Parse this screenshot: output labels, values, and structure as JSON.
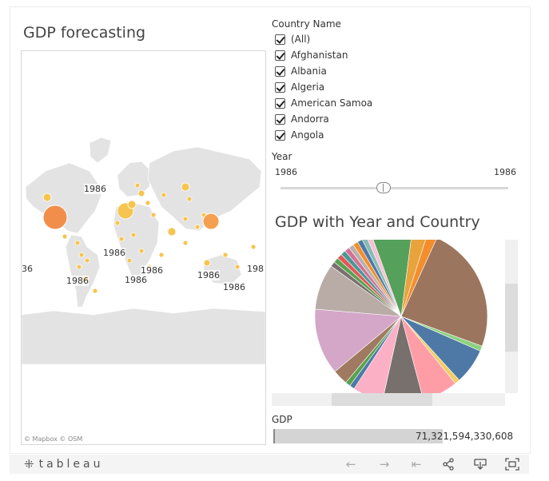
{
  "map_panel": {
    "title": "GDP forecasting",
    "attribution": "© Mapbox  © OSM",
    "point_labels": [
      "1986",
      "1986",
      "1986",
      "1986",
      "1986",
      "1986",
      "1986",
      "1986",
      "1986",
      "1986",
      "36",
      "198"
    ]
  },
  "country_filter": {
    "title": "Country Name",
    "items": [
      {
        "label": "(All)",
        "checked": true
      },
      {
        "label": "Afghanistan",
        "checked": true
      },
      {
        "label": "Albania",
        "checked": true
      },
      {
        "label": "Algeria",
        "checked": true
      },
      {
        "label": "American Samoa",
        "checked": true
      },
      {
        "label": "Andorra",
        "checked": true
      },
      {
        "label": "Angola",
        "checked": true
      }
    ]
  },
  "year_filter": {
    "title": "Year",
    "min": "1986",
    "max": "1986"
  },
  "pie_panel": {
    "title": "GDP with Year and Country",
    "slice_colors": [
      "#55a05a",
      "#e8a33d",
      "#f28e2b",
      "#9c755f",
      "#8cd17d",
      "#4e79a7",
      "#f1ce63",
      "#ff9da7",
      "#77706c",
      "#fbb0c6",
      "#4e79a7",
      "#59a14f",
      "#a07a60",
      "#d4a6c8",
      "#b9aca6",
      "#79706e",
      "#59a14f",
      "#e15759",
      "#499894",
      "#d37295",
      "#bab0ac",
      "#f28e2b",
      "#4e79a7",
      "#86bcb6",
      "#fabfd2"
    ]
  },
  "gdp_legend": {
    "title": "GDP",
    "value": "71,321,594,330,608"
  },
  "footer": {
    "logo_text": "tableau",
    "logo_icon": "tableau-plus-icon",
    "buttons": [
      "undo-icon",
      "redo-icon",
      "revert-icon",
      "share-icon",
      "download-icon",
      "fullscreen-icon"
    ]
  }
}
